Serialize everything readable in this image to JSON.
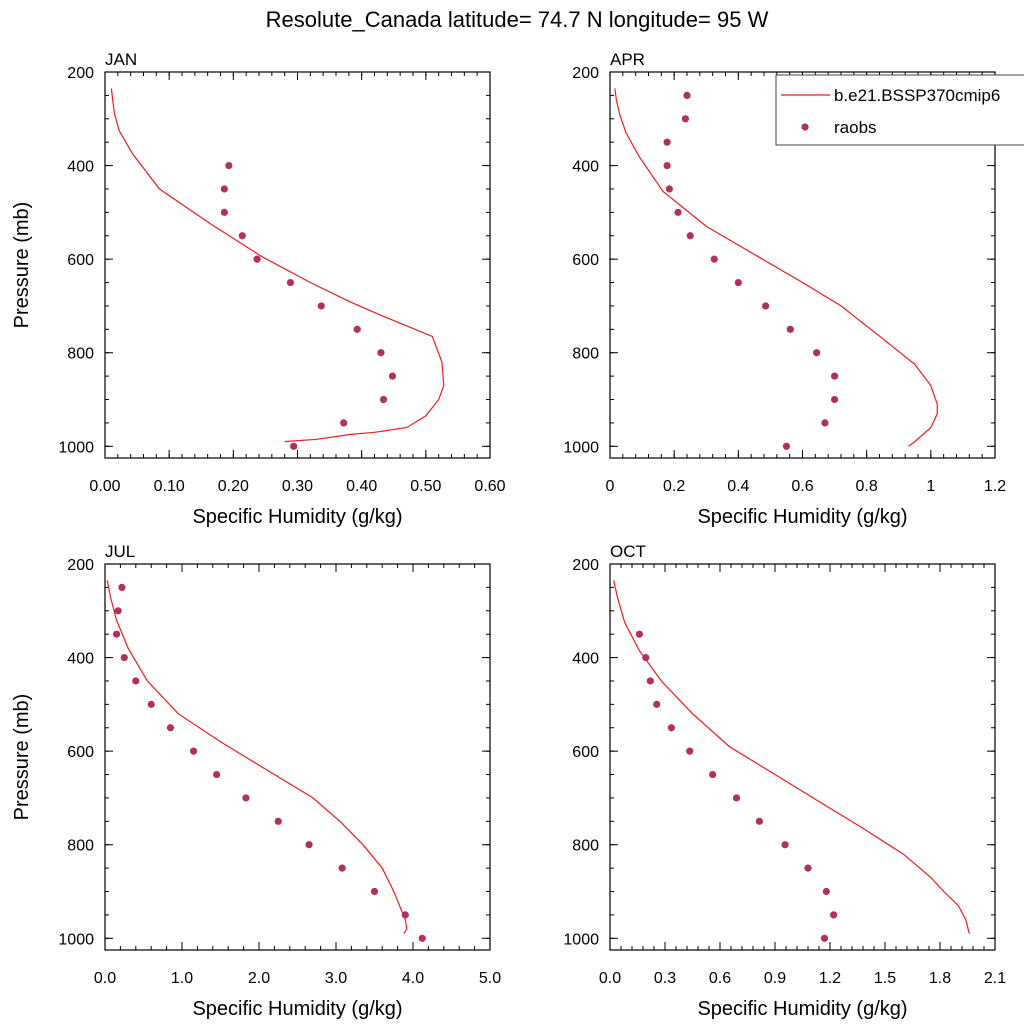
{
  "title": "Resolute_Canada  latitude= 74.7 N longitude= 95 W",
  "legend": {
    "model_label": "b.e21.BSSP370cmip6",
    "obs_label": "raobs"
  },
  "colors": {
    "model": "#ee1c1c",
    "obs": "#b03060",
    "axis": "#000000"
  },
  "chart_data": [
    {
      "type": "line",
      "panel_title": "JAN",
      "xlabel": "Specific Humidity (g/kg)",
      "ylabel": "Pressure (mb)",
      "xlim": [
        0,
        0.6
      ],
      "ylim": [
        200,
        1025
      ],
      "y_reversed": true,
      "xticks": [
        0,
        0.1,
        0.2,
        0.3,
        0.4,
        0.5,
        0.6
      ],
      "xtick_labels": [
        "0.00",
        "0.10",
        "0.20",
        "0.30",
        "0.40",
        "0.50",
        "0.60"
      ],
      "yticks": [
        200,
        400,
        600,
        800,
        1000
      ],
      "ytick_labels": [
        "200",
        "400",
        "600",
        "800",
        "1000"
      ],
      "series": [
        {
          "name": "b.e21.BSSP370cmip6",
          "kind": "line",
          "x": [
            0.01,
            0.012,
            0.015,
            0.022,
            0.043,
            0.085,
            0.165,
            0.245,
            0.32,
            0.38,
            0.43,
            0.51,
            0.525,
            0.528,
            0.52,
            0.5,
            0.47,
            0.42,
            0.38,
            0.33,
            0.28
          ],
          "y": [
            235,
            260,
            290,
            325,
            375,
            450,
            525,
            595,
            650,
            690,
            720,
            765,
            820,
            870,
            900,
            935,
            960,
            970,
            975,
            985,
            990
          ]
        },
        {
          "name": "raobs",
          "kind": "scatter",
          "x": [
            0.193,
            0.186,
            0.186,
            0.214,
            0.237,
            0.289,
            0.337,
            0.393,
            0.43,
            0.448,
            0.434,
            0.372,
            0.294
          ],
          "y": [
            400,
            450,
            500,
            550,
            600,
            650,
            700,
            750,
            800,
            850,
            900,
            950,
            1000
          ]
        }
      ]
    },
    {
      "type": "line",
      "panel_title": "APR",
      "xlabel": "Specific Humidity (g/kg)",
      "ylabel": "",
      "xlim": [
        0,
        1.2
      ],
      "ylim": [
        200,
        1025
      ],
      "y_reversed": true,
      "xticks": [
        0,
        0.2,
        0.4,
        0.6,
        0.8,
        1.0,
        1.2
      ],
      "xtick_labels": [
        "0",
        "0.2",
        "0.4",
        "0.6",
        "0.8",
        "1",
        "1.2"
      ],
      "yticks": [
        200,
        400,
        600,
        800,
        1000
      ],
      "ytick_labels": [
        "200",
        "400",
        "600",
        "800",
        "1000"
      ],
      "series": [
        {
          "name": "b.e21.BSSP370cmip6",
          "kind": "line",
          "x": [
            0.015,
            0.02,
            0.03,
            0.05,
            0.09,
            0.165,
            0.3,
            0.45,
            0.6,
            0.72,
            0.85,
            0.95,
            1.0,
            1.02,
            1.02,
            1.0,
            0.95,
            0.93
          ],
          "y": [
            235,
            260,
            290,
            330,
            380,
            455,
            530,
            590,
            650,
            700,
            770,
            825,
            870,
            910,
            930,
            960,
            990,
            1000
          ]
        },
        {
          "name": "raobs",
          "kind": "scatter",
          "x": [
            0.24,
            0.235,
            0.178,
            0.178,
            0.185,
            0.212,
            0.25,
            0.325,
            0.4,
            0.485,
            0.562,
            0.644,
            0.7,
            0.7,
            0.67,
            0.55
          ],
          "y": [
            250,
            300,
            350,
            400,
            450,
            500,
            550,
            600,
            650,
            700,
            750,
            800,
            850,
            900,
            950,
            1000
          ]
        }
      ]
    },
    {
      "type": "line",
      "panel_title": "JUL",
      "xlabel": "Specific Humidity (g/kg)",
      "ylabel": "Pressure (mb)",
      "xlim": [
        0,
        5
      ],
      "ylim": [
        200,
        1025
      ],
      "y_reversed": true,
      "xticks": [
        0,
        1,
        2,
        3,
        4,
        5
      ],
      "xtick_labels": [
        "0.0",
        "1.0",
        "2.0",
        "3.0",
        "4.0",
        "5.0"
      ],
      "yticks": [
        200,
        400,
        600,
        800,
        1000
      ],
      "ytick_labels": [
        "200",
        "400",
        "600",
        "800",
        "1000"
      ],
      "series": [
        {
          "name": "b.e21.BSSP370cmip6",
          "kind": "line",
          "x": [
            0.03,
            0.07,
            0.15,
            0.3,
            0.55,
            0.95,
            1.5,
            2.1,
            2.7,
            3.05,
            3.35,
            3.6,
            3.75,
            3.85,
            3.9,
            3.92,
            3.88
          ],
          "y": [
            235,
            270,
            320,
            380,
            450,
            520,
            580,
            640,
            700,
            750,
            800,
            850,
            900,
            940,
            960,
            980,
            990
          ]
        },
        {
          "name": "raobs",
          "kind": "scatter",
          "x": [
            0.22,
            0.17,
            0.15,
            0.25,
            0.4,
            0.6,
            0.85,
            1.15,
            1.45,
            1.83,
            2.25,
            2.65,
            3.08,
            3.5,
            3.9,
            4.12
          ],
          "y": [
            250,
            300,
            350,
            400,
            450,
            500,
            550,
            600,
            650,
            700,
            750,
            800,
            850,
            900,
            950,
            1000
          ]
        }
      ]
    },
    {
      "type": "line",
      "panel_title": "OCT",
      "xlabel": "Specific Humidity (g/kg)",
      "ylabel": "",
      "xlim": [
        0,
        2.1
      ],
      "ylim": [
        200,
        1025
      ],
      "y_reversed": true,
      "xticks": [
        0,
        0.3,
        0.6,
        0.9,
        1.2,
        1.5,
        1.8,
        2.1
      ],
      "xtick_labels": [
        "0.0",
        "0.3",
        "0.6",
        "0.9",
        "1.2",
        "1.5",
        "1.8",
        "2.1"
      ],
      "yticks": [
        200,
        400,
        600,
        800,
        1000
      ],
      "ytick_labels": [
        "200",
        "400",
        "600",
        "800",
        "1000"
      ],
      "series": [
        {
          "name": "b.e21.BSSP370cmip6",
          "kind": "line",
          "x": [
            0.02,
            0.04,
            0.08,
            0.16,
            0.28,
            0.45,
            0.65,
            0.9,
            1.15,
            1.38,
            1.6,
            1.75,
            1.82,
            1.9,
            1.94,
            1.96
          ],
          "y": [
            235,
            270,
            325,
            385,
            450,
            520,
            590,
            650,
            710,
            765,
            820,
            870,
            900,
            930,
            960,
            990
          ]
        },
        {
          "name": "raobs",
          "kind": "scatter",
          "x": [
            0.16,
            0.195,
            0.22,
            0.255,
            0.335,
            0.435,
            0.56,
            0.69,
            0.815,
            0.955,
            1.08,
            1.18,
            1.22,
            1.17
          ],
          "y": [
            350,
            400,
            450,
            500,
            550,
            600,
            650,
            700,
            750,
            800,
            850,
            900,
            950,
            1000
          ]
        }
      ]
    }
  ]
}
